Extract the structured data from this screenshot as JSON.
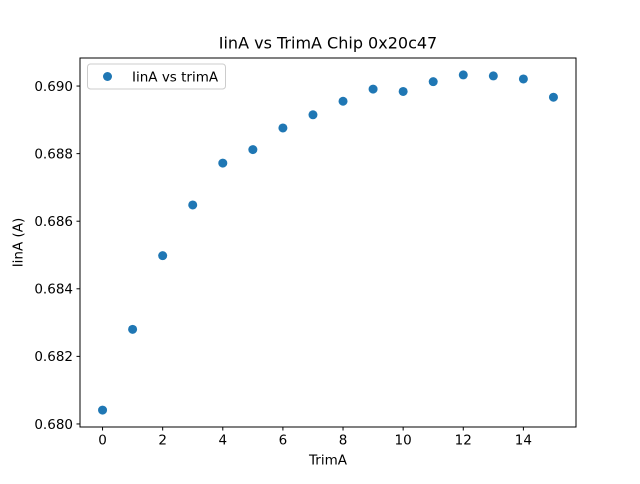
{
  "figure": {
    "background": "#ffffff",
    "frame_color": "#000000"
  },
  "chart_data": {
    "type": "scatter",
    "title": "IinA vs TrimA Chip 0x20c47",
    "xlabel": "TrimA",
    "ylabel": "IinA (A)",
    "legend": {
      "label": "IinA vs trimA",
      "position": "upper-left",
      "marker": "dot"
    },
    "marker_color": "#1f77b4",
    "grid": false,
    "x": [
      0,
      1,
      2,
      3,
      4,
      5,
      6,
      7,
      8,
      9,
      10,
      11,
      12,
      13,
      14,
      15
    ],
    "y": [
      0.68041,
      0.6828,
      0.68498,
      0.68648,
      0.68772,
      0.68812,
      0.68876,
      0.68915,
      0.68955,
      0.68991,
      0.68984,
      0.69013,
      0.69033,
      0.6903,
      0.69021,
      0.68967
    ],
    "xlim": [
      -0.75,
      15.75
    ],
    "ylim": [
      0.67991,
      0.69083
    ],
    "xticks": {
      "values": [
        0,
        2,
        4,
        6,
        8,
        10,
        12,
        14
      ],
      "labels": [
        "0",
        "2",
        "4",
        "6",
        "8",
        "10",
        "12",
        "14"
      ]
    },
    "yticks": {
      "values": [
        0.68,
        0.682,
        0.684,
        0.686,
        0.688,
        0.69
      ],
      "labels": [
        "0.680",
        "0.682",
        "0.684",
        "0.686",
        "0.688",
        "0.690"
      ]
    }
  }
}
